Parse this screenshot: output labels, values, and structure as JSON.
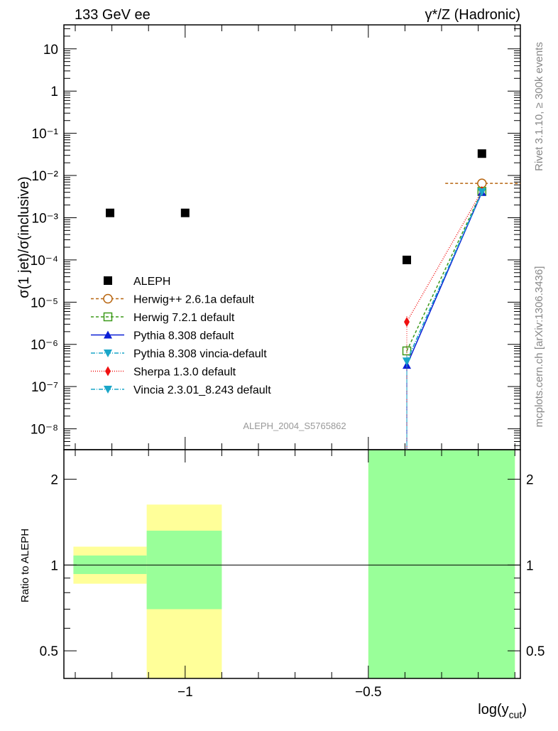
{
  "chart_data": {
    "type": "scatter",
    "title_left": "133 GeV ee",
    "title_right": "γ*/Z (Hadronic)",
    "ylabel": "σ(1 jet)/σ(inclusive)",
    "xlabel": "log(y_cut)",
    "side_label_top": "Rivet 3.1.10, ≥ 300k events",
    "side_label_bottom": "mcplots.cern.ch [arXiv:1306.3436]",
    "analysis_label": "ALEPH_2004_S5765862",
    "xlim": [
      -1.331,
      -0.085
    ],
    "ylim": [
      3.2e-09,
      37
    ],
    "yscale": "log",
    "x_ticks": [
      {
        "v": -1,
        "label": "−1"
      },
      {
        "v": -0.5,
        "label": "−0.5"
      }
    ],
    "y_ticks": [
      {
        "v": 10,
        "label": "10"
      },
      {
        "v": 1,
        "label": "1"
      },
      {
        "v": 0.1,
        "label": "10⁻¹"
      },
      {
        "v": 0.01,
        "label": "10⁻²"
      },
      {
        "v": 0.001,
        "label": "10⁻³"
      },
      {
        "v": 0.0001,
        "label": "10⁻⁴"
      },
      {
        "v": 1e-05,
        "label": "10⁻⁵"
      },
      {
        "v": 1e-06,
        "label": "10⁻⁶"
      },
      {
        "v": 1e-07,
        "label": "10⁻⁷"
      },
      {
        "v": 1e-08,
        "label": "10⁻⁸"
      }
    ],
    "legend_position": "center-left",
    "series": [
      {
        "name": "ALEPH",
        "color": "#000000",
        "marker": "square",
        "line": "none",
        "x": [
          -1.205,
          -1.0,
          -0.395,
          -0.19
        ],
        "y": [
          0.0013,
          0.0013,
          0.0001,
          0.033
        ]
      },
      {
        "name": "Herwig++ 2.6.1a default",
        "color": "#b8650f",
        "marker": "open-circle",
        "line": "4,3",
        "x": [
          -0.19
        ],
        "y": [
          0.0065
        ]
      },
      {
        "name": "Herwig 7.2.1 default",
        "color": "#3d9a1a",
        "marker": "open-square",
        "line": "4,3",
        "x": [
          -0.395,
          -0.19
        ],
        "y": [
          7e-07,
          0.0042
        ]
      },
      {
        "name": "Pythia 8.308 default",
        "color": "#0a1fd6",
        "marker": "triangle-up",
        "line": "",
        "x": [
          -0.395,
          -0.19
        ],
        "y": [
          3.2e-07,
          0.004
        ]
      },
      {
        "name": "Pythia 8.308 vincia-default",
        "color": "#1aa6c8",
        "marker": "triangle-down",
        "line": "6,2,1,2",
        "x": [
          -0.395,
          -0.19
        ],
        "y": [
          4e-07,
          0.0041
        ]
      },
      {
        "name": "Sherpa 1.3.0 default",
        "color": "#f01010",
        "marker": "diamond",
        "line": "1,2",
        "x": [
          -0.395,
          -0.19
        ],
        "y": [
          3.4e-06,
          0.0043
        ]
      },
      {
        "name": "Vincia 2.3.01_8.243 default",
        "color": "#1aa6c8",
        "marker": "triangle-down",
        "line": "6,2,1,2",
        "x": [
          -0.395,
          -0.19
        ],
        "y": [
          4e-07,
          0.0041
        ]
      }
    ],
    "ratio": {
      "ylabel": "Ratio to ALEPH",
      "ylim": [
        0.4,
        2.54
      ],
      "y_ticks": [
        {
          "v": 2,
          "label": "2"
        },
        {
          "v": 1,
          "label": "1"
        },
        {
          "v": 0.5,
          "label": "0.5"
        }
      ],
      "bands": [
        {
          "x": [
            -1.305,
            -1.105
          ],
          "yellow": [
            0.86,
            1.16
          ],
          "green": [
            0.93,
            1.08
          ]
        },
        {
          "x": [
            -1.105,
            -0.9
          ],
          "yellow": [
            0.4,
            1.63
          ],
          "green": [
            0.7,
            1.32
          ]
        },
        {
          "x": [
            -0.5,
            -0.1
          ],
          "yellow": [
            0.4,
            2.54
          ],
          "green": [
            0.4,
            2.54
          ]
        }
      ]
    }
  }
}
